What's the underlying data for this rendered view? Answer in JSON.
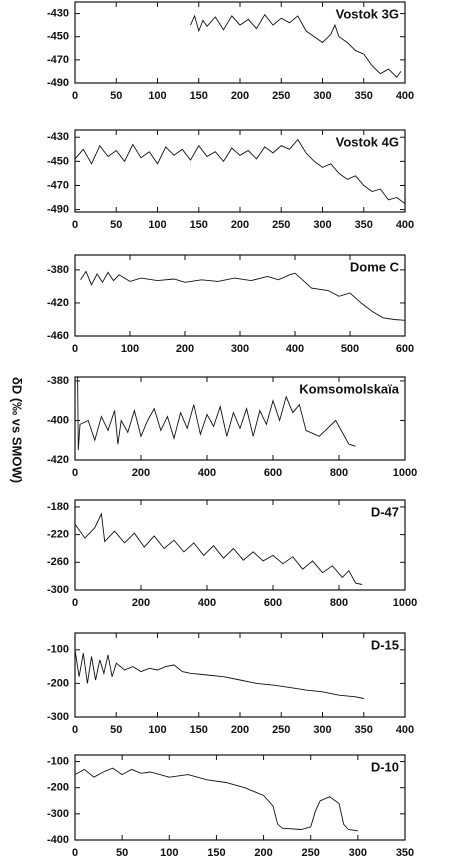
{
  "ylabel": "δD (‰ vs SMOW)",
  "chart_data": [
    {
      "type": "line",
      "title": "Vostok 3G",
      "color": "#111111",
      "x": [
        140,
        145,
        150,
        155,
        160,
        170,
        180,
        190,
        200,
        210,
        220,
        230,
        240,
        250,
        260,
        270,
        280,
        290,
        300,
        310,
        315,
        320,
        330,
        340,
        350,
        360,
        370,
        380,
        390,
        395
      ],
      "values": [
        -440,
        -432,
        -445,
        -436,
        -441,
        -433,
        -444,
        -432,
        -440,
        -435,
        -443,
        -431,
        -440,
        -434,
        -438,
        -432,
        -445,
        -450,
        -455,
        -448,
        -440,
        -450,
        -455,
        -462,
        -465,
        -475,
        -482,
        -478,
        -485,
        -480
      ],
      "xlim": [
        0,
        400
      ],
      "xticks": [
        0,
        50,
        100,
        150,
        200,
        250,
        300,
        350,
        400
      ],
      "ylim": [
        -490,
        -420
      ],
      "yticks": [
        -430,
        -450,
        -470,
        -490
      ]
    },
    {
      "type": "line",
      "title": "Vostok 4G",
      "color": "#111111",
      "x": [
        0,
        10,
        20,
        30,
        40,
        50,
        60,
        70,
        80,
        90,
        100,
        110,
        120,
        130,
        140,
        150,
        160,
        170,
        180,
        190,
        200,
        210,
        220,
        230,
        240,
        250,
        260,
        270,
        280,
        290,
        300,
        310,
        320,
        330,
        340,
        350,
        360,
        370,
        380,
        390,
        400
      ],
      "values": [
        -448,
        -440,
        -452,
        -437,
        -446,
        -441,
        -450,
        -436,
        -447,
        -442,
        -452,
        -438,
        -445,
        -440,
        -449,
        -437,
        -446,
        -442,
        -450,
        -439,
        -445,
        -441,
        -448,
        -438,
        -443,
        -437,
        -440,
        -432,
        -443,
        -450,
        -455,
        -452,
        -460,
        -465,
        -462,
        -470,
        -475,
        -473,
        -482,
        -480,
        -485
      ],
      "xlim": [
        0,
        400
      ],
      "xticks": [
        0,
        50,
        100,
        150,
        200,
        250,
        300,
        350,
        400
      ],
      "ylim": [
        -492,
        -424
      ],
      "yticks": [
        -430,
        -450,
        -470,
        -490
      ]
    },
    {
      "type": "line",
      "title": "Dome C",
      "color": "#111111",
      "x": [
        10,
        20,
        30,
        40,
        50,
        60,
        70,
        80,
        100,
        120,
        150,
        180,
        200,
        230,
        260,
        290,
        320,
        350,
        370,
        390,
        400,
        410,
        430,
        460,
        480,
        500,
        520,
        540,
        560,
        580,
        600
      ],
      "values": [
        -392,
        -382,
        -398,
        -385,
        -395,
        -383,
        -393,
        -386,
        -394,
        -390,
        -393,
        -391,
        -395,
        -392,
        -394,
        -390,
        -393,
        -388,
        -392,
        -386,
        -384,
        -390,
        -402,
        -405,
        -412,
        -408,
        -420,
        -430,
        -438,
        -440,
        -441
      ],
      "xlim": [
        0,
        600
      ],
      "xticks": [
        0,
        100,
        200,
        300,
        400,
        500,
        600
      ],
      "ylim": [
        -460,
        -362
      ],
      "yticks": [
        -380,
        -420,
        -460
      ]
    },
    {
      "type": "line",
      "title": "Komsomolskaïa",
      "color": "#111111",
      "x": [
        8,
        10,
        15,
        40,
        60,
        80,
        100,
        120,
        130,
        140,
        160,
        180,
        200,
        220,
        240,
        260,
        280,
        300,
        320,
        340,
        360,
        380,
        400,
        420,
        440,
        460,
        480,
        500,
        520,
        540,
        560,
        580,
        600,
        620,
        640,
        660,
        680,
        700,
        740,
        790,
        830,
        850
      ],
      "values": [
        -378,
        -415,
        -402,
        -400,
        -410,
        -398,
        -405,
        -395,
        -412,
        -400,
        -406,
        -395,
        -408,
        -400,
        -394,
        -405,
        -398,
        -409,
        -396,
        -404,
        -392,
        -407,
        -397,
        -403,
        -393,
        -408,
        -396,
        -404,
        -394,
        -408,
        -395,
        -402,
        -390,
        -400,
        -388,
        -396,
        -392,
        -405,
        -408,
        -400,
        -412,
        -413
      ],
      "xlim": [
        0,
        1000
      ],
      "xticks": [
        0,
        200,
        400,
        600,
        800,
        1000
      ],
      "ylim": [
        -420,
        -378
      ],
      "yticks": [
        -380,
        -400,
        -420
      ]
    },
    {
      "type": "line",
      "title": "D-47",
      "color": "#111111",
      "x": [
        0,
        30,
        60,
        80,
        90,
        120,
        150,
        180,
        210,
        240,
        270,
        300,
        330,
        360,
        390,
        420,
        450,
        480,
        510,
        540,
        570,
        600,
        630,
        660,
        690,
        720,
        750,
        780,
        810,
        830,
        850,
        870
      ],
      "values": [
        -205,
        -225,
        -210,
        -190,
        -230,
        -215,
        -232,
        -218,
        -238,
        -222,
        -240,
        -228,
        -245,
        -232,
        -250,
        -236,
        -254,
        -240,
        -257,
        -245,
        -258,
        -250,
        -262,
        -252,
        -270,
        -258,
        -275,
        -265,
        -282,
        -272,
        -290,
        -292
      ],
      "xlim": [
        0,
        1000
      ],
      "xticks": [
        0,
        200,
        400,
        600,
        800,
        1000
      ],
      "ylim": [
        -300,
        -170
      ],
      "yticks": [
        -180,
        -220,
        -260,
        -300
      ]
    },
    {
      "type": "line",
      "title": "D-15",
      "color": "#111111",
      "x": [
        0,
        5,
        10,
        15,
        20,
        25,
        30,
        35,
        40,
        45,
        50,
        60,
        70,
        80,
        90,
        100,
        110,
        120,
        130,
        140,
        160,
        180,
        200,
        220,
        240,
        260,
        280,
        300,
        320,
        340,
        350
      ],
      "values": [
        -100,
        -180,
        -110,
        -200,
        -120,
        -190,
        -130,
        -170,
        -115,
        -180,
        -140,
        -160,
        -150,
        -165,
        -155,
        -160,
        -150,
        -145,
        -165,
        -170,
        -175,
        -180,
        -190,
        -200,
        -205,
        -212,
        -220,
        -225,
        -235,
        -240,
        -245
      ],
      "xlim": [
        0,
        400
      ],
      "xticks": [
        0,
        50,
        100,
        150,
        200,
        250,
        300,
        350,
        400
      ],
      "ylim": [
        -300,
        -50
      ],
      "yticks": [
        -100,
        -200,
        -300
      ]
    },
    {
      "type": "line",
      "title": "D-10",
      "color": "#111111",
      "x": [
        0,
        10,
        20,
        30,
        40,
        50,
        60,
        70,
        80,
        100,
        120,
        140,
        160,
        180,
        200,
        210,
        215,
        220,
        240,
        250,
        255,
        260,
        270,
        280,
        285,
        290,
        300
      ],
      "values": [
        -150,
        -130,
        -160,
        -140,
        -125,
        -150,
        -130,
        -145,
        -140,
        -160,
        -150,
        -170,
        -180,
        -200,
        -230,
        -270,
        -340,
        -355,
        -360,
        -350,
        -290,
        -250,
        -235,
        -260,
        -340,
        -360,
        -365
      ],
      "xlim": [
        0,
        350
      ],
      "xticks": [
        0,
        50,
        100,
        150,
        200,
        250,
        300,
        350
      ],
      "ylim": [
        -400,
        -75
      ],
      "yticks": [
        -100,
        -200,
        -300,
        -400
      ]
    }
  ]
}
